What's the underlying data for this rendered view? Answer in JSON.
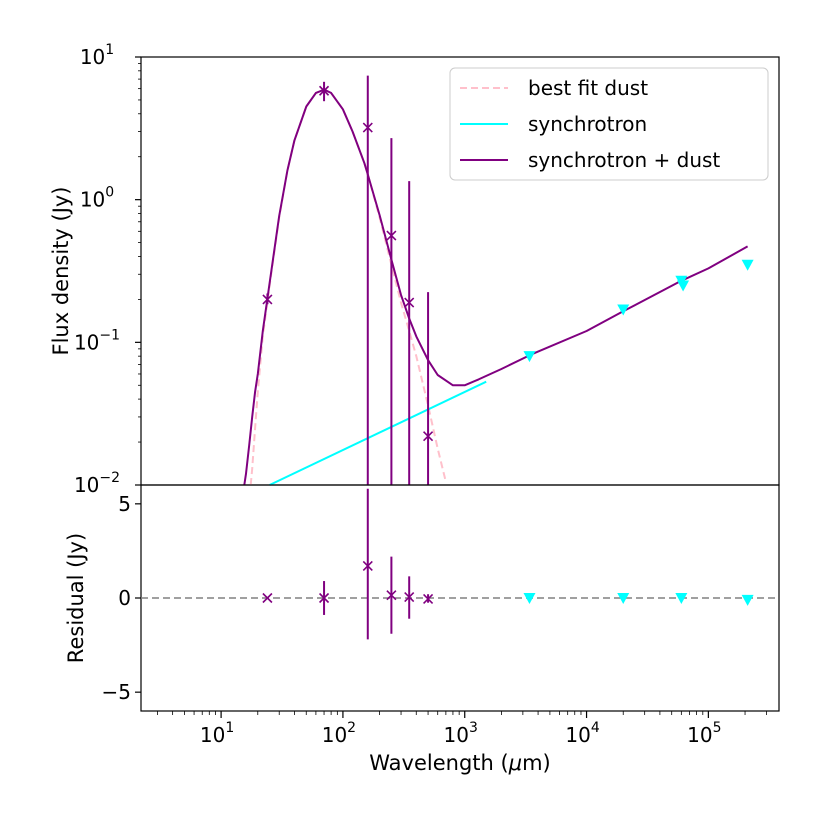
{
  "chart_data": [
    {
      "type": "line",
      "panel": "top",
      "xscale": "log",
      "yscale": "log",
      "xlim": [
        2.2,
        380000
      ],
      "ylim": [
        0.01,
        10
      ],
      "ylabel": "Flux density (Jy)",
      "yticks": [
        {
          "value": 0.01,
          "base": "10",
          "exp": "−2"
        },
        {
          "value": 0.1,
          "base": "10",
          "exp": "−1"
        },
        {
          "value": 1,
          "base": "10",
          "exp": "0"
        },
        {
          "value": 10,
          "base": "10",
          "exp": "1"
        }
      ],
      "legend": {
        "placement": "top-right",
        "entries": [
          {
            "label": "best fit dust",
            "color": "#ffc0cb",
            "style": "dashed"
          },
          {
            "label": "synchrotron",
            "color": "#00ffff",
            "style": "solid"
          },
          {
            "label": "synchrotron + dust",
            "color": "#800080",
            "style": "solid"
          }
        ]
      },
      "series": [
        {
          "name": "best fit dust",
          "color": "#ffc0cb",
          "style": "dashed",
          "x": [
            17.5,
            18,
            19,
            20,
            22,
            25,
            30,
            35,
            40,
            50,
            60,
            70,
            80,
            100,
            120,
            150,
            160,
            200,
            250,
            300,
            350,
            400,
            500,
            600,
            700
          ],
          "y": [
            0.01,
            0.013,
            0.025,
            0.045,
            0.11,
            0.25,
            0.75,
            1.6,
            2.6,
            4.5,
            5.6,
            5.9,
            5.6,
            4.3,
            3.0,
            1.8,
            1.5,
            0.75,
            0.35,
            0.19,
            0.12,
            0.08,
            0.036,
            0.018,
            0.0105
          ]
        },
        {
          "name": "synchrotron",
          "color": "#00ffff",
          "style": "solid",
          "x": [
            25,
            1500
          ],
          "y": [
            0.01,
            0.053
          ]
        },
        {
          "name": "synchrotron + dust",
          "color": "#800080",
          "style": "solid",
          "x": [
            15.5,
            16,
            17,
            18,
            19,
            20,
            22,
            25,
            30,
            35,
            40,
            50,
            60,
            70,
            80,
            100,
            120,
            150,
            160,
            200,
            250,
            300,
            350,
            400,
            500,
            600,
            800,
            1000,
            1300,
            2000,
            3500,
            10000,
            20000,
            60000,
            100000,
            210000
          ],
          "y": [
            0.01,
            0.012,
            0.019,
            0.03,
            0.045,
            0.06,
            0.12,
            0.26,
            0.77,
            1.6,
            2.6,
            4.5,
            5.6,
            5.9,
            5.6,
            4.3,
            3.0,
            1.8,
            1.5,
            0.78,
            0.38,
            0.215,
            0.147,
            0.11,
            0.075,
            0.059,
            0.05,
            0.05,
            0.055,
            0.065,
            0.082,
            0.12,
            0.165,
            0.27,
            0.33,
            0.47
          ]
        }
      ],
      "measurements": [
        {
          "x": 24,
          "y": 0.2,
          "ylo": 0.185,
          "yhi": 0.22,
          "color": "#800080"
        },
        {
          "x": 70,
          "y": 5.8,
          "ylo": 4.9,
          "yhi": 6.7,
          "color": "#800080"
        },
        {
          "x": 160,
          "y": 3.2,
          "ylo": 0.01,
          "yhi": 7.4,
          "color": "#800080"
        },
        {
          "x": 250,
          "y": 0.56,
          "ylo": 0.01,
          "yhi": 2.7,
          "color": "#800080"
        },
        {
          "x": 350,
          "y": 0.19,
          "ylo": 0.01,
          "yhi": 1.35,
          "color": "#800080"
        },
        {
          "x": 500,
          "y": 0.022,
          "ylo": 0.01,
          "yhi": 0.225,
          "color": "#800080"
        }
      ],
      "upper_limits": [
        {
          "x": 3400,
          "y": 0.08,
          "color": "#00ffff"
        },
        {
          "x": 20000,
          "y": 0.17,
          "color": "#00ffff"
        },
        {
          "x": 60000,
          "y": 0.27,
          "color": "#00ffff"
        },
        {
          "x": 62000,
          "y": 0.25,
          "color": "#00ffff"
        },
        {
          "x": 210000,
          "y": 0.35,
          "color": "#00ffff"
        }
      ]
    },
    {
      "type": "scatter",
      "panel": "bottom",
      "xscale": "log",
      "yscale": "linear",
      "xlim": [
        2.2,
        380000
      ],
      "ylim": [
        -6,
        6
      ],
      "xlabel": "Wavelength (μm)",
      "ylabel": "Residual (Jy)",
      "xlabel_parts": {
        "before": "Wavelength (",
        "symbol": "μ",
        "after": "m)"
      },
      "xticks": [
        {
          "value": 10,
          "base": "10",
          "exp": "1"
        },
        {
          "value": 100,
          "base": "10",
          "exp": "2"
        },
        {
          "value": 1000,
          "base": "10",
          "exp": "3"
        },
        {
          "value": 10000,
          "base": "10",
          "exp": "4"
        },
        {
          "value": 100000,
          "base": "10",
          "exp": "5"
        }
      ],
      "yticks": [
        {
          "value": 5,
          "label": "5"
        },
        {
          "value": 0,
          "label": "0"
        },
        {
          "value": -5,
          "label": "−5"
        }
      ],
      "zero_line": {
        "y": 0,
        "color": "#808080",
        "style": "dashed"
      },
      "measurements": [
        {
          "x": 24,
          "y": 0.0,
          "ylo": -0.02,
          "yhi": 0.02,
          "color": "#800080"
        },
        {
          "x": 70,
          "y": 0.0,
          "ylo": -0.9,
          "yhi": 0.9,
          "color": "#800080"
        },
        {
          "x": 160,
          "y": 1.7,
          "ylo": -2.2,
          "yhi": 5.8,
          "color": "#800080"
        },
        {
          "x": 250,
          "y": 0.15,
          "ylo": -1.9,
          "yhi": 2.2,
          "color": "#800080"
        },
        {
          "x": 350,
          "y": 0.05,
          "ylo": -1.1,
          "yhi": 1.15,
          "color": "#800080"
        },
        {
          "x": 500,
          "y": -0.05,
          "ylo": -0.25,
          "yhi": 0.2,
          "color": "#800080"
        }
      ],
      "upper_limits": [
        {
          "x": 3400,
          "y": 0.0,
          "color": "#00ffff"
        },
        {
          "x": 20000,
          "y": 0.0,
          "color": "#00ffff"
        },
        {
          "x": 60000,
          "y": 0.0,
          "color": "#00ffff"
        },
        {
          "x": 210000,
          "y": -0.1,
          "color": "#00ffff"
        }
      ]
    }
  ]
}
